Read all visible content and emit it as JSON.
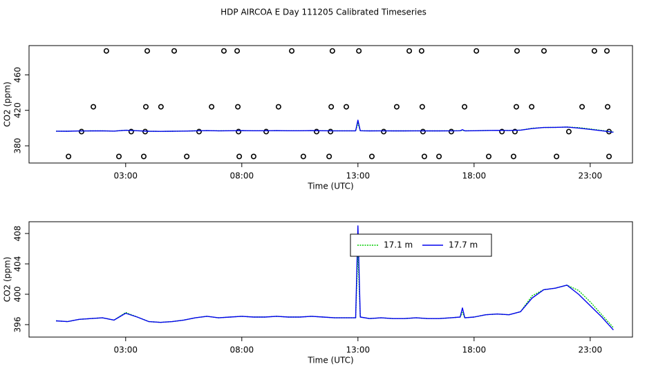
{
  "chart_data": [
    {
      "type": "line",
      "title": "HDP AIRCOA E  Day 111205  Calibrated Timeseries",
      "xlabel": "Time (UTC)",
      "ylabel": "CO2 (ppm)",
      "xlim": [
        -1.16,
        24.82
      ],
      "ylim": [
        360.6,
        493
      ],
      "xticks": [
        {
          "value": 3,
          "label": "03:00"
        },
        {
          "value": 8,
          "label": "08:00"
        },
        {
          "value": 13,
          "label": "13:00"
        },
        {
          "value": 18,
          "label": "18:00"
        },
        {
          "value": 23,
          "label": "23:00"
        }
      ],
      "yticks": [
        380,
        420,
        460
      ],
      "x": [
        0,
        0.5,
        1,
        1.5,
        2,
        2.5,
        3,
        3.5,
        4,
        4.5,
        5,
        5.5,
        6,
        6.5,
        7,
        7.5,
        8,
        8.5,
        9,
        9.5,
        10,
        10.5,
        11,
        11.5,
        12,
        12.5,
        12.9,
        13,
        13.1,
        13.5,
        14,
        14.5,
        15,
        15.5,
        16,
        16.5,
        17,
        17.4,
        17.5,
        17.6,
        18,
        18.5,
        19,
        19.5,
        20,
        20.5,
        21,
        21.5,
        22,
        22.5,
        23,
        23.5,
        24
      ],
      "series": [
        {
          "mode": "points",
          "color": "#000000",
          "x": [
            2.17,
            3.93,
            5.09,
            7.23,
            7.8,
            10.15,
            11.9,
            13.04,
            15.21,
            15.74,
            18.1,
            19.85,
            21.01,
            23.18,
            23.72,
            1.61,
            3.87,
            4.52,
            6.7,
            7.83,
            9.58,
            11.85,
            12.5,
            14.67,
            15.77,
            17.59,
            19.82,
            20.48,
            22.65,
            23.75,
            1.1,
            3.24,
            3.84,
            6.16,
            7.86,
            9.05,
            11.22,
            11.82,
            14.11,
            15.8,
            17.02,
            19.2,
            19.76,
            22.08,
            23.81,
            0.54,
            2.71,
            3.78,
            5.63,
            7.89,
            8.51,
            10.65,
            11.76,
            13.6,
            15.86,
            16.49,
            18.63,
            19.7,
            21.55,
            23.81
          ],
          "values": [
            487,
            487,
            487,
            487,
            487,
            487,
            487,
            487,
            487,
            487,
            487,
            487,
            487,
            487,
            487,
            424,
            424,
            424,
            424,
            424,
            424,
            424,
            424,
            424,
            424,
            424,
            424,
            424,
            424,
            424,
            396,
            396,
            396,
            396,
            396,
            396,
            396,
            396,
            396,
            396,
            396,
            396,
            396,
            396,
            396,
            368,
            368,
            368,
            368,
            368,
            368,
            368,
            368,
            368,
            368,
            368,
            368,
            368,
            368,
            368
          ]
        },
        {
          "mode": "lines",
          "dash": true,
          "color": "#00cc00",
          "values": [
            396.5,
            396.4,
            396.7,
            396.8,
            396.9,
            396.6,
            397.6,
            397.0,
            396.4,
            396.3,
            396.4,
            396.6,
            396.9,
            397.1,
            396.9,
            397.0,
            397.1,
            397.0,
            397.0,
            397.1,
            397.0,
            397.0,
            397.1,
            397.0,
            396.9,
            396.9,
            396.9,
            405.5,
            397.0,
            396.8,
            396.9,
            396.8,
            396.8,
            396.9,
            396.8,
            396.8,
            396.9,
            397.0,
            397.6,
            396.9,
            397.0,
            397.3,
            397.4,
            397.3,
            397.7,
            399.8,
            400.6,
            400.8,
            401.2,
            400.5,
            399.0,
            397.3,
            395.6
          ]
        },
        {
          "mode": "lines",
          "color": "#0000ee",
          "values": [
            396.5,
            396.4,
            396.7,
            396.8,
            396.9,
            396.6,
            397.5,
            397.0,
            396.4,
            396.3,
            396.4,
            396.6,
            396.9,
            397.1,
            396.9,
            397.0,
            397.1,
            397.0,
            397.0,
            397.1,
            397.0,
            397.0,
            397.1,
            397.0,
            396.9,
            396.9,
            396.9,
            409.0,
            397.0,
            396.8,
            396.9,
            396.8,
            396.8,
            396.9,
            396.8,
            396.8,
            396.9,
            397.0,
            398.2,
            396.9,
            397.0,
            397.3,
            397.4,
            397.3,
            397.7,
            399.5,
            400.6,
            400.8,
            401.2,
            400.0,
            398.5,
            397.0,
            395.3
          ]
        }
      ]
    },
    {
      "type": "line",
      "xlabel": "Time (UTC)",
      "ylabel": "CO2 (ppm)",
      "xlim": [
        -1.16,
        24.82
      ],
      "ylim": [
        394.36,
        409.55
      ],
      "xticks": [
        {
          "value": 3,
          "label": "03:00"
        },
        {
          "value": 8,
          "label": "08:00"
        },
        {
          "value": 13,
          "label": "13:00"
        },
        {
          "value": 18,
          "label": "18:00"
        },
        {
          "value": 23,
          "label": "23:00"
        }
      ],
      "yticks": [
        396,
        400,
        404,
        408
      ],
      "legend": "top",
      "x": [
        0,
        0.5,
        1,
        1.5,
        2,
        2.5,
        3,
        3.5,
        4,
        4.5,
        5,
        5.5,
        6,
        6.5,
        7,
        7.5,
        8,
        8.5,
        9,
        9.5,
        10,
        10.5,
        11,
        11.5,
        12,
        12.5,
        12.9,
        13,
        13.1,
        13.5,
        14,
        14.5,
        15,
        15.5,
        16,
        16.5,
        17,
        17.4,
        17.5,
        17.6,
        18,
        18.5,
        19,
        19.5,
        20,
        20.5,
        21,
        21.5,
        22,
        22.5,
        23,
        23.5,
        24
      ],
      "series": [
        {
          "name": "17.1 m",
          "mode": "lines",
          "dash": true,
          "color": "#00cc00",
          "values": [
            396.5,
            396.4,
            396.7,
            396.8,
            396.9,
            396.6,
            397.6,
            397.0,
            396.4,
            396.3,
            396.4,
            396.6,
            396.9,
            397.1,
            396.9,
            397.0,
            397.1,
            397.0,
            397.0,
            397.1,
            397.0,
            397.0,
            397.1,
            397.0,
            396.9,
            396.9,
            396.9,
            405.5,
            397.0,
            396.8,
            396.9,
            396.8,
            396.8,
            396.9,
            396.8,
            396.8,
            396.9,
            397.0,
            397.6,
            396.9,
            397.0,
            397.3,
            397.4,
            397.3,
            397.7,
            399.8,
            400.6,
            400.8,
            401.2,
            400.5,
            399.0,
            397.3,
            395.6
          ]
        },
        {
          "name": "17.7 m",
          "mode": "lines",
          "color": "#0000ee",
          "values": [
            396.5,
            396.4,
            396.7,
            396.8,
            396.9,
            396.6,
            397.5,
            397.0,
            396.4,
            396.3,
            396.4,
            396.6,
            396.9,
            397.1,
            396.9,
            397.0,
            397.1,
            397.0,
            397.0,
            397.1,
            397.0,
            397.0,
            397.1,
            397.0,
            396.9,
            396.9,
            396.9,
            409.0,
            397.0,
            396.8,
            396.9,
            396.8,
            396.8,
            396.9,
            396.8,
            396.8,
            396.9,
            397.0,
            398.2,
            396.9,
            397.0,
            397.3,
            397.4,
            397.3,
            397.7,
            399.5,
            400.6,
            400.8,
            401.2,
            400.0,
            398.5,
            397.0,
            395.3
          ]
        }
      ]
    }
  ]
}
